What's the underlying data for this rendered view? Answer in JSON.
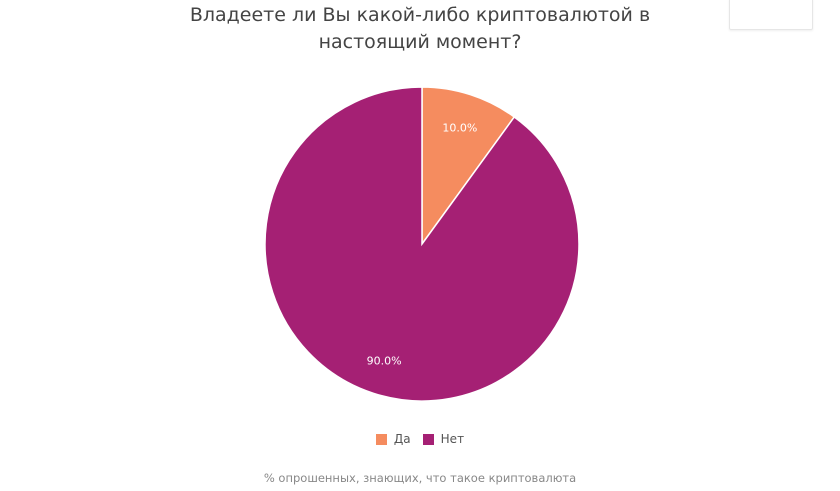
{
  "chart_data": {
    "type": "pie",
    "title": "Владеете ли Вы какой-либо криптовалютой в настоящий момент?",
    "subtitle": "% опрошенных, знающих, что такое криптовалюта",
    "slices": [
      {
        "label": "Да",
        "value": 10.0,
        "data_label": "10.0%",
        "color": "#F58C5F"
      },
      {
        "label": "Нет",
        "value": 90.0,
        "data_label": "90.0%",
        "color": "#A52074"
      }
    ],
    "legend_position": "bottom"
  }
}
